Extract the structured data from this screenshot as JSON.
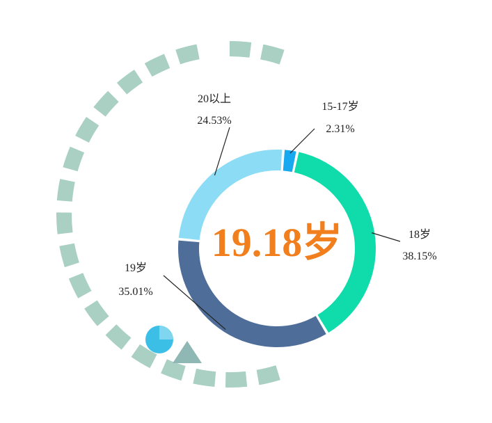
{
  "chart_data": {
    "type": "pie",
    "variant": "donut",
    "center_label": "19.18岁",
    "slices": [
      {
        "label": "18岁",
        "percent_text": "38.15%",
        "value": 38.15,
        "color": "#0fdcaa"
      },
      {
        "label": "19岁",
        "percent_text": "35.01%",
        "value": 35.01,
        "color": "#4e6e99"
      },
      {
        "label": "20以上",
        "percent_text": "24.53%",
        "value": 24.53,
        "color": "#8bdcf4"
      },
      {
        "label": "15-17岁",
        "percent_text": "2.31%",
        "value": 2.31,
        "color": "#17a8f0"
      }
    ]
  },
  "colors": {
    "center_text": "#f17f1e",
    "decor_dash": "#a9d0c2",
    "decor_circle": "#3cbfe6",
    "decor_triangle": "#8fb8b4"
  }
}
